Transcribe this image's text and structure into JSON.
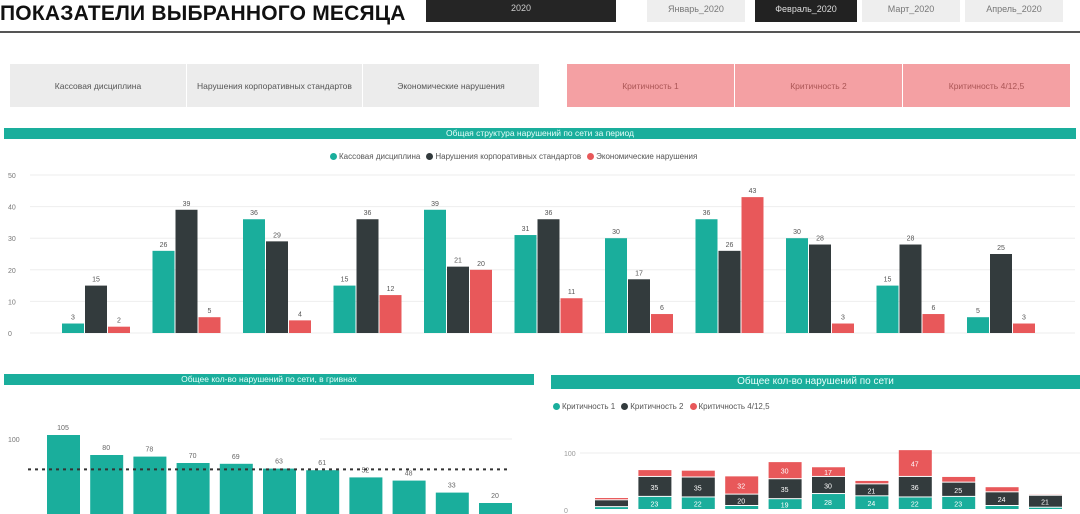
{
  "header": {
    "title": "ПОКАЗАТЕЛИ ВЫБРАННОГО МЕСЯЦА",
    "year": "2020",
    "months": [
      {
        "label": "Январь_2020",
        "selected": false
      },
      {
        "label": "Февраль_2020",
        "selected": true
      },
      {
        "label": "Март_2020",
        "selected": false
      },
      {
        "label": "Апрель_2020",
        "selected": false
      }
    ]
  },
  "filters": {
    "categories": [
      "Кассовая дисциплина",
      "Нарушения корпоративных стандартов",
      "Экономические нарушения"
    ],
    "criticality": [
      "Критичность 1",
      "Критичность 2",
      "Критичность 4/12,5"
    ]
  },
  "colors": {
    "teal": "#1aae9c",
    "dark": "#333b3d",
    "red": "#e8585a"
  },
  "chart_data": [
    {
      "type": "bar",
      "title": "Общая структура нарушений по сети за период",
      "ylim": [
        0,
        50
      ],
      "yticks": [
        "0",
        "10",
        "20",
        "30",
        "40",
        "50"
      ],
      "series": [
        {
          "name": "Кассовая дисциплина",
          "values": [
            3,
            26,
            36,
            15,
            39,
            31,
            30,
            36,
            30,
            15,
            5
          ]
        },
        {
          "name": "Нарушения корпоративных стандартов",
          "values": [
            15,
            39,
            29,
            36,
            21,
            36,
            17,
            26,
            28,
            28,
            25
          ]
        },
        {
          "name": "Экономические нарушения",
          "values": [
            2,
            5,
            4,
            12,
            20,
            11,
            6,
            43,
            3,
            6,
            3
          ]
        }
      ]
    },
    {
      "type": "bar",
      "title": "Общее кол-во нарушений по сети, в гривнах",
      "ylim": [
        0,
        110
      ],
      "yticks": [
        "100"
      ],
      "values": [
        105,
        80,
        78,
        70,
        69,
        63,
        61,
        52,
        48,
        33,
        20
      ],
      "average": 62
    },
    {
      "type": "bar",
      "stacked": true,
      "title": "Общее кол-во нарушений по сети",
      "ylim": [
        0,
        100
      ],
      "yticks": [
        "0",
        "100"
      ],
      "series": [
        {
          "name": "Критичность 1",
          "values": [
            5,
            23,
            22,
            7,
            19,
            28,
            24,
            22,
            23,
            7,
            4
          ]
        },
        {
          "name": "Критичность 2",
          "values": [
            12,
            35,
            35,
            20,
            35,
            30,
            21,
            36,
            25,
            24,
            21
          ]
        },
        {
          "name": "Критичность 4/12,5",
          "values": [
            4,
            12,
            12,
            32,
            30,
            17,
            6,
            47,
            10,
            9,
            2
          ]
        }
      ],
      "labeled_min": 15
    }
  ]
}
